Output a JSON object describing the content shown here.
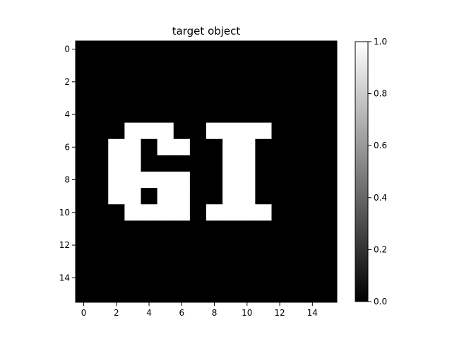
{
  "chart_data": {
    "type": "heatmap",
    "title": "target object",
    "xlabel": "",
    "ylabel": "",
    "colormap": "gray",
    "rows": 16,
    "cols": 16,
    "xticks": [
      0,
      2,
      4,
      6,
      8,
      10,
      12,
      14
    ],
    "yticks": [
      0,
      2,
      4,
      6,
      8,
      10,
      12,
      14
    ],
    "xtick_labels": [
      "0",
      "2",
      "4",
      "6",
      "8",
      "10",
      "12",
      "14"
    ],
    "ytick_labels": [
      "0",
      "2",
      "4",
      "6",
      "8",
      "10",
      "12",
      "14"
    ],
    "colorbar": {
      "range": [
        0.0,
        1.0
      ],
      "ticks": [
        0.0,
        0.2,
        0.4,
        0.6,
        0.8,
        1.0
      ],
      "tick_labels": [
        "0.0",
        "0.2",
        "0.4",
        "0.6",
        "0.8",
        "1.0"
      ]
    },
    "values": [
      [
        0,
        0,
        0,
        0,
        0,
        0,
        0,
        0,
        0,
        0,
        0,
        0,
        0,
        0,
        0,
        0
      ],
      [
        0,
        0,
        0,
        0,
        0,
        0,
        0,
        0,
        0,
        0,
        0,
        0,
        0,
        0,
        0,
        0
      ],
      [
        0,
        0,
        0,
        0,
        0,
        0,
        0,
        0,
        0,
        0,
        0,
        0,
        0,
        0,
        0,
        0
      ],
      [
        0,
        0,
        0,
        0,
        0,
        0,
        0,
        0,
        0,
        0,
        0,
        0,
        0,
        0,
        0,
        0
      ],
      [
        0,
        0,
        0,
        0,
        0,
        0,
        0,
        0,
        0,
        0,
        0,
        0,
        0,
        0,
        0,
        0
      ],
      [
        0,
        0,
        0,
        1,
        1,
        1,
        0,
        0,
        1,
        1,
        1,
        1,
        0,
        0,
        0,
        0
      ],
      [
        0,
        0,
        1,
        1,
        0,
        1,
        1,
        0,
        0,
        1,
        1,
        0,
        0,
        0,
        0,
        0
      ],
      [
        0,
        0,
        1,
        1,
        0,
        0,
        0,
        0,
        0,
        1,
        1,
        0,
        0,
        0,
        0,
        0
      ],
      [
        0,
        0,
        1,
        1,
        1,
        1,
        1,
        0,
        0,
        1,
        1,
        0,
        0,
        0,
        0,
        0
      ],
      [
        0,
        0,
        1,
        1,
        0,
        1,
        1,
        0,
        0,
        1,
        1,
        0,
        0,
        0,
        0,
        0
      ],
      [
        0,
        0,
        0,
        1,
        1,
        1,
        1,
        0,
        1,
        1,
        1,
        1,
        0,
        0,
        0,
        0
      ],
      [
        0,
        0,
        0,
        0,
        0,
        0,
        0,
        0,
        0,
        0,
        0,
        0,
        0,
        0,
        0,
        0
      ],
      [
        0,
        0,
        0,
        0,
        0,
        0,
        0,
        0,
        0,
        0,
        0,
        0,
        0,
        0,
        0,
        0
      ],
      [
        0,
        0,
        0,
        0,
        0,
        0,
        0,
        0,
        0,
        0,
        0,
        0,
        0,
        0,
        0,
        0
      ],
      [
        0,
        0,
        0,
        0,
        0,
        0,
        0,
        0,
        0,
        0,
        0,
        0,
        0,
        0,
        0,
        0
      ],
      [
        0,
        0,
        0,
        0,
        0,
        0,
        0,
        0,
        0,
        0,
        0,
        0,
        0,
        0,
        0,
        0
      ]
    ]
  }
}
